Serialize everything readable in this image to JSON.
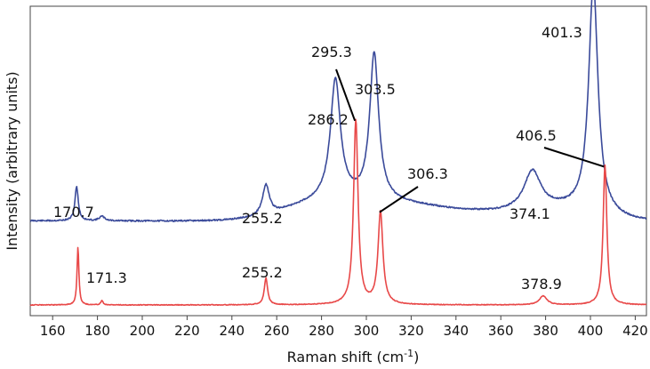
{
  "chart_data": {
    "type": "line",
    "xlabel": "Raman shift (cm",
    "xlabel_sup": "-1",
    "xlabel_close": ")",
    "ylabel": "Intensity (arbitrary units)",
    "xlim": [
      150,
      425
    ],
    "ylim": [
      0,
      1
    ],
    "x_ticks": [
      "160",
      "180",
      "200",
      "220",
      "240",
      "260",
      "280",
      "300",
      "320",
      "340",
      "360",
      "380",
      "400",
      "420"
    ],
    "colors": {
      "blue": "#3a4a9a",
      "red": "#e84848",
      "axis": "#444444"
    },
    "series": [
      {
        "name": "blue",
        "color": "#3a4a9a",
        "baseline_start": 0.145,
        "baseline_end": 0.14,
        "shoulders": [
          {
            "center": 280,
            "height": 0.05,
            "width": 18
          },
          {
            "center": 312,
            "height": 0.05,
            "width": 22
          },
          {
            "center": 360,
            "height": 0.025,
            "width": 25
          },
          {
            "center": 390,
            "height": 0.03,
            "width": 15
          }
        ],
        "peaks": [
          {
            "center": 170.7,
            "height": 0.115,
            "width": 0.9
          },
          {
            "center": 182.0,
            "height": 0.015,
            "width": 1.5
          },
          {
            "center": 255.2,
            "height": 0.1,
            "width": 1.8
          },
          {
            "center": 286.2,
            "height": 0.4,
            "width": 2.7
          },
          {
            "center": 303.5,
            "height": 0.49,
            "width": 2.4
          },
          {
            "center": 374.1,
            "height": 0.13,
            "width": 4.5
          },
          {
            "center": 401.3,
            "height": 0.77,
            "width": 2.5
          }
        ]
      },
      {
        "name": "red",
        "color": "#e84848",
        "baseline_start": 0.0,
        "baseline_end": 0.0,
        "shoulders": [],
        "peaks": [
          {
            "center": 171.3,
            "height": 0.195,
            "width": 0.5
          },
          {
            "center": 182.0,
            "height": 0.015,
            "width": 0.6
          },
          {
            "center": 255.2,
            "height": 0.09,
            "width": 0.9
          },
          {
            "center": 295.3,
            "height": 0.62,
            "width": 1.2
          },
          {
            "center": 306.3,
            "height": 0.31,
            "width": 1.3
          },
          {
            "center": 378.9,
            "height": 0.03,
            "width": 2.0
          },
          {
            "center": 406.5,
            "height": 0.47,
            "width": 1.0
          }
        ]
      }
    ],
    "annotations": [
      {
        "text": "170.7",
        "x": 170.7,
        "series": "blue"
      },
      {
        "text": "171.3",
        "x": 171.3,
        "series": "red"
      },
      {
        "text": "255.2",
        "x": 255.2,
        "series": "blue"
      },
      {
        "text": "255.2",
        "x": 255.2,
        "series": "red"
      },
      {
        "text": "286.2",
        "x": 286.2,
        "series": "blue"
      },
      {
        "text": "295.3",
        "x": 295.3,
        "series": "red"
      },
      {
        "text": "303.5",
        "x": 303.5,
        "series": "blue"
      },
      {
        "text": "306.3",
        "x": 306.3,
        "series": "red"
      },
      {
        "text": "374.1",
        "x": 374.1,
        "series": "blue"
      },
      {
        "text": "378.9",
        "x": 378.9,
        "series": "red"
      },
      {
        "text": "401.3",
        "x": 401.3,
        "series": "blue"
      },
      {
        "text": "406.5",
        "x": 406.5,
        "series": "red"
      }
    ]
  }
}
